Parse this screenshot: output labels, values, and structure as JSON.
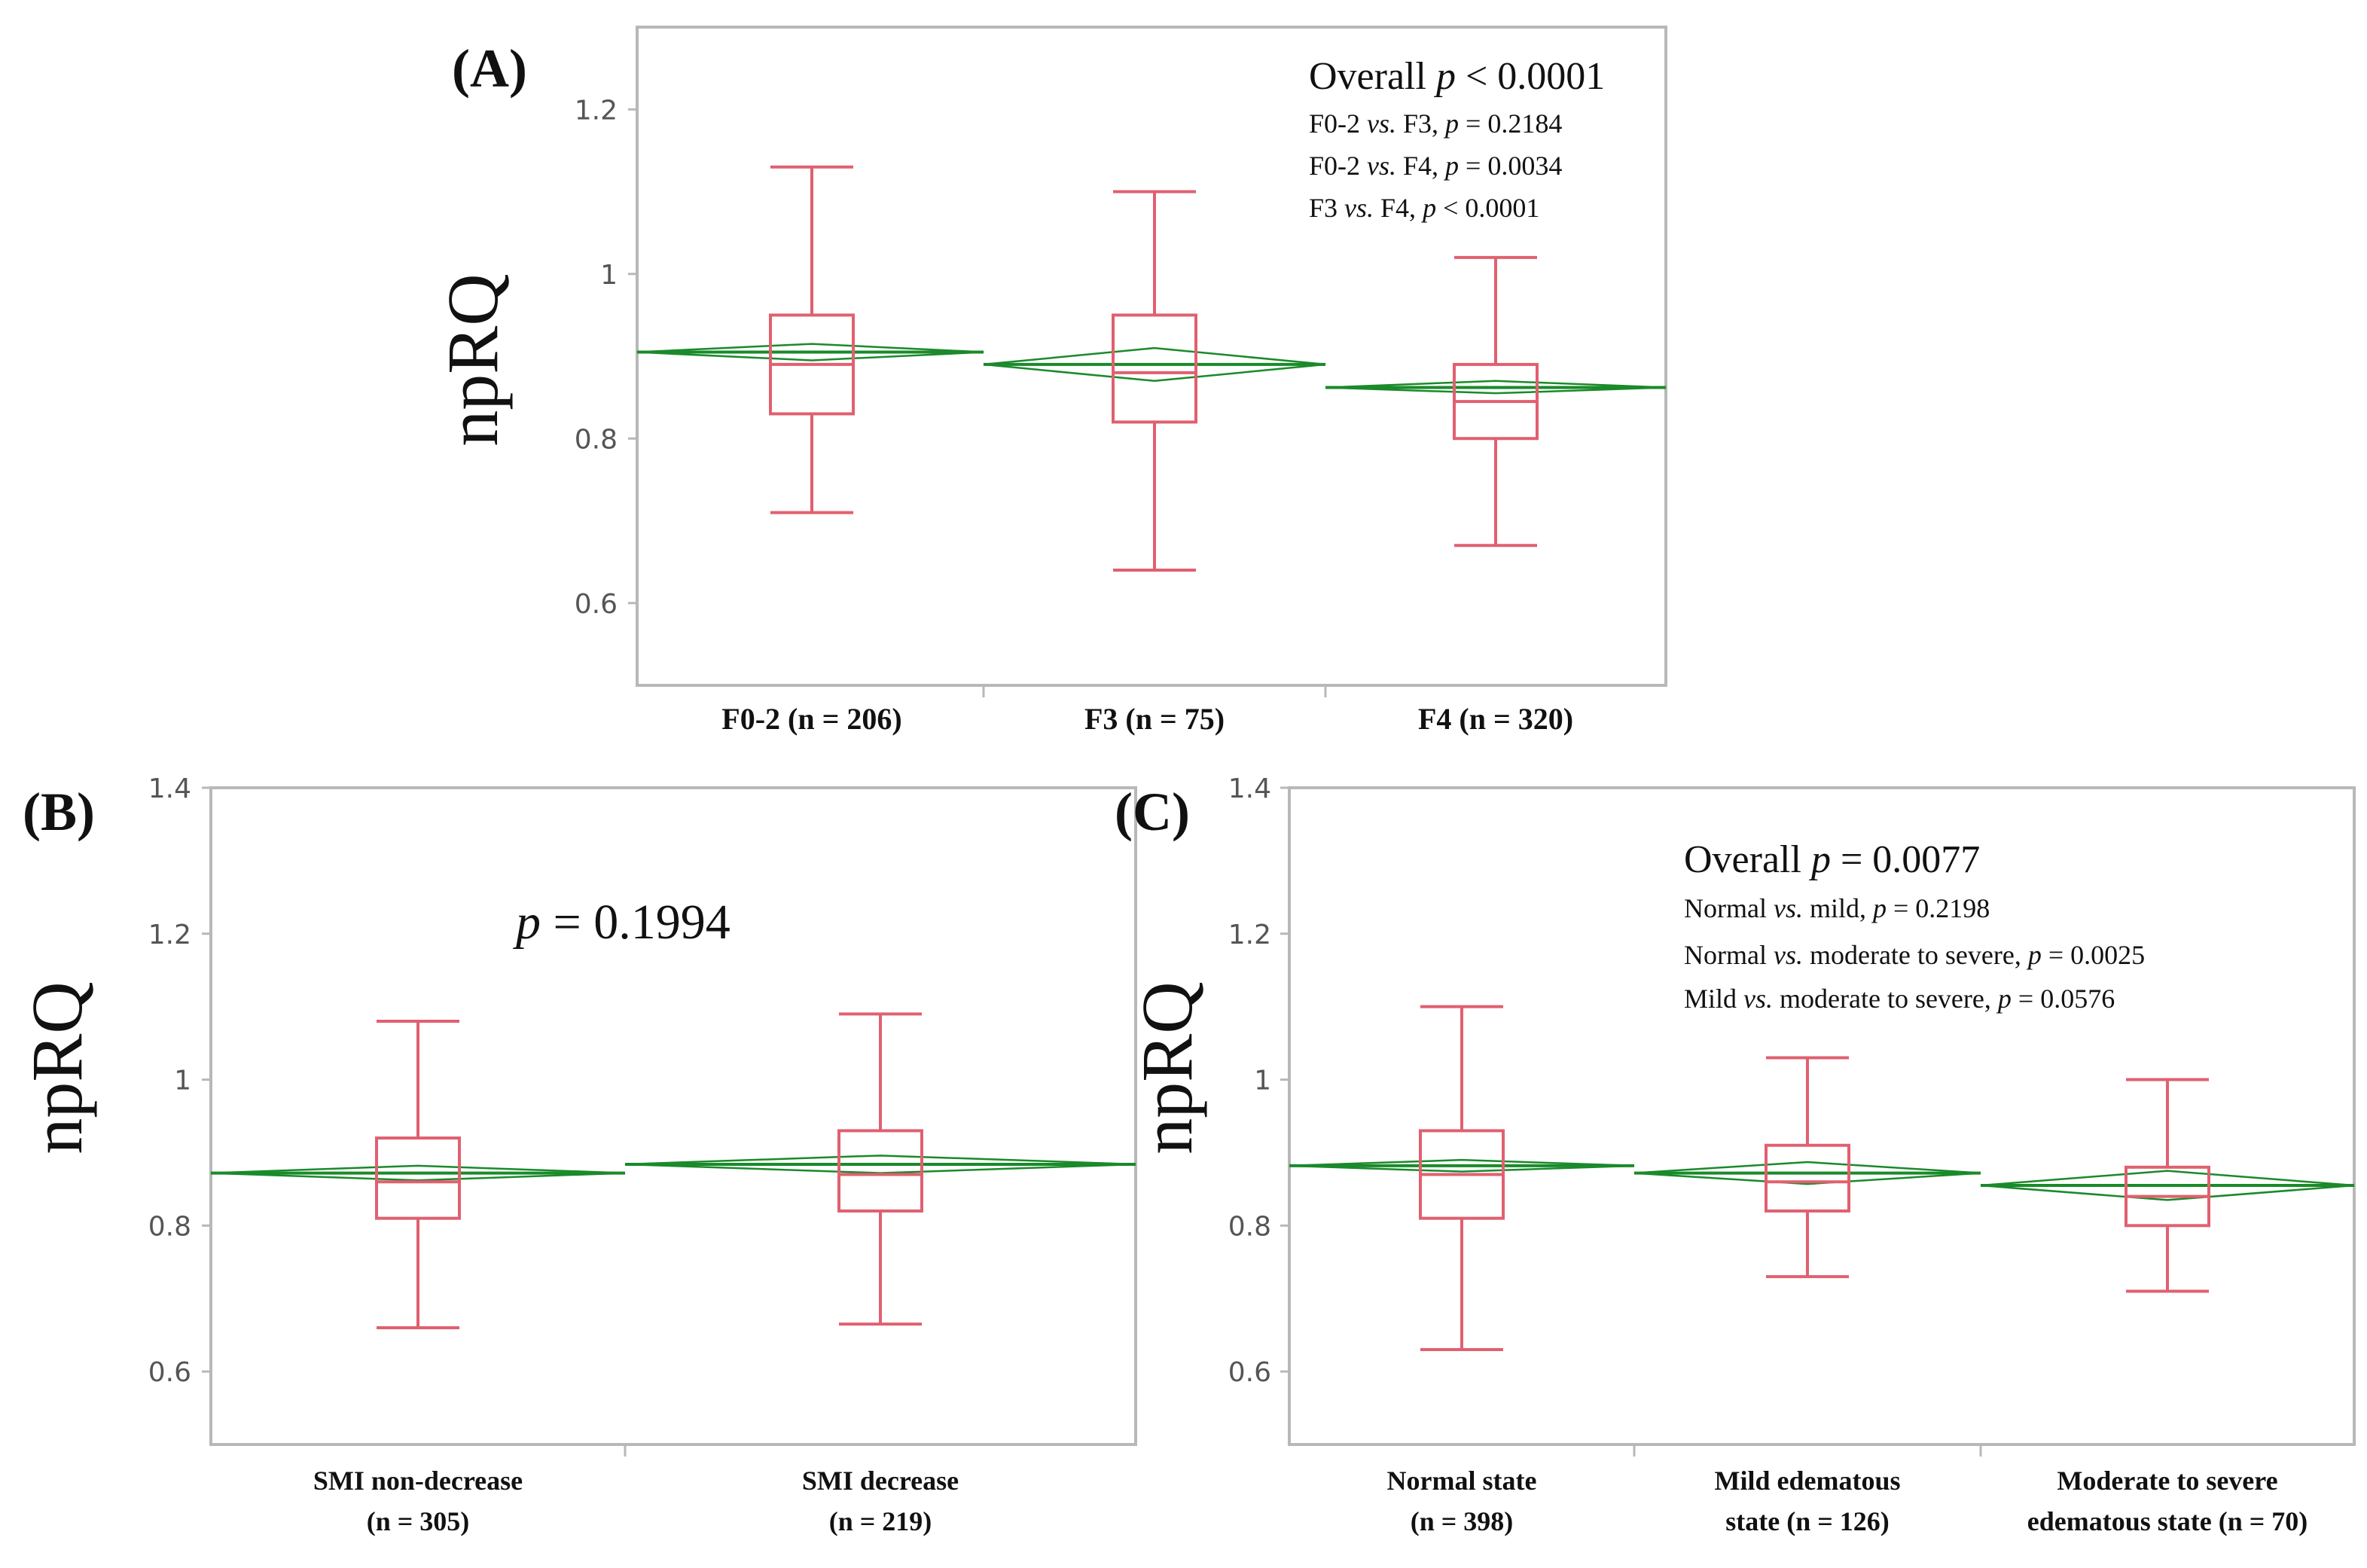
{
  "colors": {
    "box": "#e06070",
    "diamond": "#1a8a2a",
    "frame": "#b8b8b8",
    "tick_text": "#555555",
    "text": "#111111"
  },
  "chart_data": [
    {
      "panel_label": "(A)",
      "type": "box",
      "ylabel": "npRQ",
      "ylim": [
        0.5,
        1.3
      ],
      "yticks": [
        0.6,
        0.8,
        1,
        1.2
      ],
      "ytick_labels": [
        "0.6",
        "0.8",
        "1",
        "1.2"
      ],
      "categories": [
        {
          "lines": [
            "F0-2 (n = 206)"
          ],
          "min": 0.71,
          "q1": 0.83,
          "median": 0.89,
          "q3": 0.95,
          "max": 1.13,
          "mean": 0.905,
          "ci": [
            0.895,
            0.915
          ]
        },
        {
          "lines": [
            "F3 (n = 75)"
          ],
          "min": 0.64,
          "q1": 0.82,
          "median": 0.88,
          "q3": 0.95,
          "max": 1.1,
          "mean": 0.89,
          "ci": [
            0.87,
            0.91
          ]
        },
        {
          "lines": [
            "F4 (n = 320)"
          ],
          "min": 0.67,
          "q1": 0.8,
          "median": 0.845,
          "q3": 0.89,
          "max": 1.02,
          "mean": 0.862,
          "ci": [
            0.855,
            0.87
          ]
        }
      ],
      "annotation_lines": [
        {
          "size": "large",
          "parts": [
            {
              "t": "Overall "
            },
            {
              "t": "p",
              "i": true
            },
            {
              "t": " < 0.0001"
            }
          ]
        },
        {
          "size": "small",
          "parts": [
            {
              "t": "F0-2 "
            },
            {
              "t": "vs.",
              "i": true
            },
            {
              "t": " F3, "
            },
            {
              "t": "p",
              "i": true
            },
            {
              "t": " = 0.2184"
            }
          ]
        },
        {
          "size": "small",
          "parts": [
            {
              "t": "F0-2 "
            },
            {
              "t": "vs.",
              "i": true
            },
            {
              "t": " F4, "
            },
            {
              "t": "p",
              "i": true
            },
            {
              "t": " = 0.0034"
            }
          ]
        },
        {
          "size": "small",
          "parts": [
            {
              "t": "F3 "
            },
            {
              "t": "vs.",
              "i": true
            },
            {
              "t": " F4, "
            },
            {
              "t": "p",
              "i": true
            },
            {
              "t": " < 0.0001"
            }
          ]
        }
      ]
    },
    {
      "panel_label": "(B)",
      "type": "box",
      "ylabel": "npRQ",
      "ylim": [
        0.5,
        1.4
      ],
      "yticks": [
        0.6,
        0.8,
        1,
        1.2,
        1.4
      ],
      "ytick_labels": [
        "0.6",
        "0.8",
        "1",
        "1.2",
        "1.4"
      ],
      "categories": [
        {
          "lines": [
            "SMI non-decrease",
            "(n = 305)"
          ],
          "min": 0.66,
          "q1": 0.81,
          "median": 0.86,
          "q3": 0.92,
          "max": 1.08,
          "mean": 0.872,
          "ci": [
            0.862,
            0.882
          ]
        },
        {
          "lines": [
            "SMI decrease",
            "(n = 219)"
          ],
          "min": 0.665,
          "q1": 0.82,
          "median": 0.87,
          "q3": 0.93,
          "max": 1.09,
          "mean": 0.884,
          "ci": [
            0.872,
            0.896
          ]
        }
      ],
      "annotation_lines": [
        {
          "size": "xlarge",
          "parts": [
            {
              "t": "p",
              "i": true
            },
            {
              "t": " = 0.1994"
            }
          ]
        }
      ]
    },
    {
      "panel_label": "(C)",
      "type": "box",
      "ylabel": "npRQ",
      "ylim": [
        0.5,
        1.4
      ],
      "yticks": [
        0.6,
        0.8,
        1,
        1.2,
        1.4
      ],
      "ytick_labels": [
        "0.6",
        "0.8",
        "1",
        "1.2",
        "1.4"
      ],
      "categories": [
        {
          "lines": [
            "Normal state",
            "(n = 398)"
          ],
          "min": 0.63,
          "q1": 0.81,
          "median": 0.87,
          "q3": 0.93,
          "max": 1.1,
          "mean": 0.882,
          "ci": [
            0.874,
            0.89
          ]
        },
        {
          "lines": [
            "Mild edematous",
            "state (n = 126)"
          ],
          "min": 0.73,
          "q1": 0.82,
          "median": 0.86,
          "q3": 0.91,
          "max": 1.03,
          "mean": 0.872,
          "ci": [
            0.857,
            0.887
          ]
        },
        {
          "lines": [
            "Moderate to severe",
            "edematous state (n = 70)"
          ],
          "min": 0.71,
          "q1": 0.8,
          "median": 0.84,
          "q3": 0.88,
          "max": 1.0,
          "mean": 0.855,
          "ci": [
            0.835,
            0.875
          ]
        }
      ],
      "annotation_lines": [
        {
          "size": "large",
          "parts": [
            {
              "t": "Overall "
            },
            {
              "t": "p",
              "i": true
            },
            {
              "t": " = 0.0077"
            }
          ]
        },
        {
          "size": "small",
          "parts": [
            {
              "t": "Normal "
            },
            {
              "t": "vs.",
              "i": true
            },
            {
              "t": " mild, "
            },
            {
              "t": "p",
              "i": true
            },
            {
              "t": " = 0.2198"
            }
          ]
        },
        {
          "size": "small",
          "parts": [
            {
              "t": "Normal "
            },
            {
              "t": "vs.",
              "i": true
            },
            {
              "t": " moderate to severe, "
            },
            {
              "t": "p",
              "i": true
            },
            {
              "t": " = 0.0025"
            }
          ]
        },
        {
          "size": "small",
          "parts": [
            {
              "t": "Mild "
            },
            {
              "t": "vs.",
              "i": true
            },
            {
              "t": " moderate to severe, "
            },
            {
              "t": "p",
              "i": true
            },
            {
              "t": " = 0.0576"
            }
          ]
        }
      ]
    }
  ]
}
